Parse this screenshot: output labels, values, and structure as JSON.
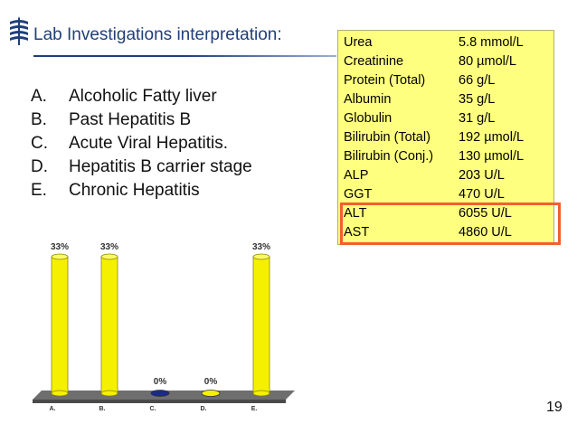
{
  "slide": {
    "title": "Lab Investigations interpretation:",
    "page_number": "19"
  },
  "options": [
    {
      "letter": "A.",
      "text": "Alcoholic Fatty liver"
    },
    {
      "letter": "B.",
      "text": "Past Hepatitis B"
    },
    {
      "letter": "C.",
      "text": "Acute Viral Hepatitis."
    },
    {
      "letter": "D.",
      "text": "Hepatitis B carrier stage"
    },
    {
      "letter": "E.",
      "text": "Chronic Hepatitis"
    }
  ],
  "labs": [
    {
      "name": "Urea",
      "value": "5.8 mmol/L"
    },
    {
      "name": "Creatinine",
      "value": "80 µmol/L"
    },
    {
      "name": "Protein (Total)",
      "value": "66 g/L"
    },
    {
      "name": "Albumin",
      "value": "35 g/L"
    },
    {
      "name": "Globulin",
      "value": "31 g/L"
    },
    {
      "name": "Bilirubin (Total)",
      "value": "192 µmol/L"
    },
    {
      "name": "Bilirubin (Conj.)",
      "value": "130 µmol/L"
    },
    {
      "name": "ALP",
      "value": "203 U/L"
    },
    {
      "name": "GGT",
      "value": "470 U/L"
    },
    {
      "name": "ALT",
      "value": "6055 U/L"
    },
    {
      "name": "AST",
      "value": "4860 U/L"
    }
  ],
  "colors": {
    "title": "#1f3f7a",
    "table_bg": "#ffff7f",
    "highlight": "#f06030",
    "bar_yellow": "#f5f000",
    "bar_blue": "#1a2a8a"
  },
  "chart_data": {
    "type": "bar",
    "categories": [
      "A.",
      "B.",
      "C.",
      "D.",
      "E."
    ],
    "values": [
      33,
      33,
      0,
      0,
      33
    ],
    "data_labels": [
      "33%",
      "33%",
      "0%",
      "0%",
      "33%"
    ],
    "bar_colors": [
      "#f5f000",
      "#f5f000",
      "#1a2a8a",
      "#f5f000",
      "#f5f000"
    ],
    "ylim": [
      0,
      33
    ],
    "grid": false,
    "legend": "none"
  }
}
